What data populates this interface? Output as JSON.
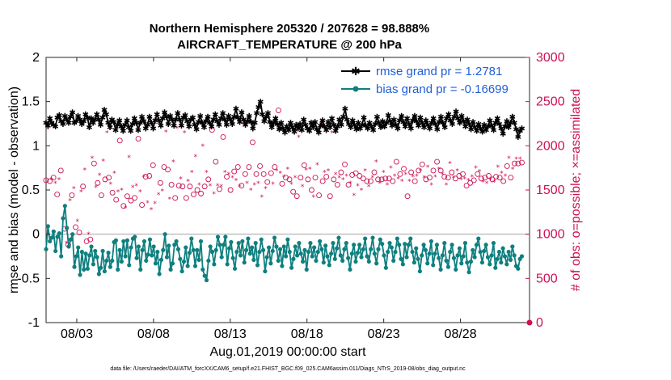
{
  "chart_data": {
    "type": "line",
    "title": "Northern Hemisphere 205320 / 207628 = 98.888%",
    "subtitle": "AIRCRAFT_TEMPERATURE @ 200 hPa",
    "xlabel": "Aug.01,2019 00:00:00 start",
    "ylabel_left": "rmse and bias (model - observation)",
    "ylabel_right": "# of obs: o=possible; ×=assimilated",
    "footnote": "data file: /Users/raeder/DAI/ATM_forcXX/CAM6_setup/f.e21.FHIST_BGC.f09_025.CAM6assim.011/Diags_NTrS_2019-08/obs_diag_output.nc",
    "xlim": [
      0,
      31.5
    ],
    "ylim_left": [
      -1,
      2
    ],
    "ylim_right": [
      0,
      3000
    ],
    "x_ticks": [
      {
        "value": 2,
        "label": "08/03"
      },
      {
        "value": 7,
        "label": "08/08"
      },
      {
        "value": 12,
        "label": "08/13"
      },
      {
        "value": 17,
        "label": "08/18"
      },
      {
        "value": 22,
        "label": "08/23"
      },
      {
        "value": 27,
        "label": "08/28"
      }
    ],
    "y_left_ticks": [
      "-1",
      "-0.5",
      "0",
      "0.5",
      "1",
      "1.5",
      "2"
    ],
    "y_right_ticks": [
      "0",
      "500",
      "1000",
      "1500",
      "2000",
      "2500",
      "3000"
    ],
    "colors": {
      "rmse": "#000000",
      "bias": "#0f7f7f",
      "obs": "#cc1155",
      "zero_line": "#c0c0c0",
      "legend_text": "#1f5fd8"
    },
    "legend": [
      {
        "name": "rmse grand pr = 1.2781",
        "series": "rmse"
      },
      {
        "name": "bias grand pr = -0.16699",
        "series": "bias"
      }
    ],
    "series": [
      {
        "name": "rmse",
        "axis": "left",
        "marker": "star",
        "values": [
          1.26,
          1.23,
          1.31,
          1.26,
          1.24,
          1.22,
          1.32,
          1.35,
          1.28,
          1.25,
          1.34,
          1.3,
          1.26,
          1.33,
          1.38,
          1.26,
          1.28,
          1.34,
          1.3,
          1.25,
          1.28,
          1.36,
          1.32,
          1.21,
          1.31,
          1.26,
          1.3,
          1.36,
          1.3,
          1.24,
          1.32,
          1.41,
          1.36,
          1.26,
          1.21,
          1.3,
          1.27,
          1.18,
          1.24,
          1.29,
          1.22,
          1.17,
          1.24,
          1.29,
          1.21,
          1.17,
          1.25,
          1.31,
          1.26,
          1.18,
          1.26,
          1.33,
          1.28,
          1.2,
          1.24,
          1.33,
          1.26,
          1.2,
          1.29,
          1.36,
          1.29,
          1.23,
          1.31,
          1.38,
          1.33,
          1.25,
          1.34,
          1.3,
          1.23,
          1.3,
          1.37,
          1.3,
          1.23,
          1.32,
          1.35,
          1.28,
          1.22,
          1.3,
          1.32,
          1.24,
          1.19,
          1.27,
          1.34,
          1.26,
          1.21,
          1.28,
          1.33,
          1.26,
          1.22,
          1.3,
          1.36,
          1.28,
          1.24,
          1.31,
          1.37,
          1.3,
          1.24,
          1.34,
          1.3,
          1.25,
          1.33,
          1.42,
          1.32,
          1.27,
          1.38,
          1.3,
          1.24,
          1.28,
          1.34,
          1.27,
          1.2,
          1.26,
          1.37,
          1.44,
          1.5,
          1.36,
          1.28,
          1.33,
          1.37,
          1.27,
          1.21,
          1.26,
          1.31,
          1.25,
          1.19,
          1.26,
          1.2,
          1.15,
          1.22,
          1.18,
          1.26,
          1.21,
          1.16,
          1.24,
          1.2,
          1.25,
          1.18,
          1.3,
          1.24,
          1.2,
          1.17,
          1.26,
          1.21,
          1.27,
          1.19,
          1.15,
          1.23,
          1.29,
          1.22,
          1.18,
          1.27,
          1.21,
          1.31,
          1.24,
          1.17,
          1.22,
          1.3,
          1.24,
          1.33,
          1.42,
          1.3,
          1.25,
          1.21,
          1.29,
          1.24,
          1.19,
          1.26,
          1.2,
          1.24,
          1.32,
          1.23,
          1.2,
          1.26,
          1.22,
          1.18,
          1.25,
          1.33,
          1.26,
          1.21,
          1.28,
          1.22,
          1.26,
          1.35,
          1.28,
          1.23,
          1.3,
          1.24,
          1.2,
          1.29,
          1.34,
          1.27,
          1.22,
          1.31,
          1.25,
          1.2,
          1.29,
          1.34,
          1.28,
          1.23,
          1.32,
          1.26,
          1.21,
          1.29,
          1.24,
          1.2,
          1.26,
          1.31,
          1.25,
          1.19,
          1.27,
          1.33,
          1.26,
          1.21,
          1.31,
          1.36,
          1.29,
          1.25,
          1.33,
          1.39,
          1.31,
          1.26,
          1.34,
          1.28,
          1.22,
          1.3,
          1.25,
          1.19,
          1.27,
          1.21,
          1.17,
          1.25,
          1.2,
          1.16,
          1.24,
          1.18,
          1.22,
          1.29,
          1.23,
          1.18,
          1.26,
          1.31,
          1.25,
          1.2,
          1.14,
          1.22,
          1.28,
          1.21,
          1.26,
          1.33,
          1.26,
          1.19,
          1.1,
          1.17,
          1.2
        ]
      },
      {
        "name": "bias",
        "axis": "left",
        "marker": "circle",
        "values": [
          -0.17,
          0.09,
          -0.08,
          -0.04,
          0.03,
          -0.19,
          -0.03,
          0.01,
          -0.25,
          0.18,
          0.32,
          0.07,
          -0.14,
          -0.06,
          0.0,
          -0.37,
          -0.25,
          -0.15,
          -0.46,
          -0.2,
          -0.4,
          -0.22,
          -0.39,
          -0.24,
          -0.14,
          -0.34,
          -0.19,
          -0.26,
          -0.45,
          -0.38,
          -0.19,
          -0.42,
          -0.3,
          -0.21,
          -0.37,
          -0.3,
          -0.09,
          -0.07,
          -0.4,
          -0.18,
          -0.31,
          -0.08,
          -0.25,
          -0.07,
          -0.35,
          -0.15,
          -0.05,
          -0.03,
          -0.27,
          -0.14,
          -0.4,
          -0.18,
          -0.08,
          -0.3,
          -0.23,
          -0.06,
          -0.24,
          -0.14,
          -0.33,
          -0.2,
          -0.45,
          -0.29,
          -0.18,
          0.0,
          -0.26,
          -0.13,
          -0.4,
          -0.33,
          -0.12,
          -0.08,
          -0.17,
          -0.28,
          -0.42,
          -0.31,
          -0.15,
          -0.36,
          -0.21,
          -0.05,
          -0.18,
          -0.36,
          -0.18,
          -0.29,
          -0.08,
          -0.4,
          -0.47,
          -0.52,
          -0.3,
          -0.14,
          -0.2,
          -0.34,
          -0.18,
          -0.03,
          -0.12,
          -0.26,
          -0.12,
          -0.03,
          -0.34,
          -0.16,
          -0.09,
          -0.27,
          -0.39,
          -0.2,
          -0.1,
          -0.24,
          -0.08,
          -0.32,
          -0.18,
          -0.05,
          -0.22,
          -0.15,
          -0.29,
          -0.1,
          -0.35,
          -0.2,
          -0.06,
          -0.18,
          -0.42,
          -0.26,
          -0.15,
          -0.33,
          -0.19,
          -0.04,
          -0.14,
          -0.3,
          -0.17,
          -0.36,
          -0.14,
          -0.25,
          -0.06,
          -0.2,
          -0.38,
          -0.28,
          -0.14,
          -0.24,
          -0.1,
          -0.22,
          -0.31,
          -0.18,
          -0.4,
          -0.2,
          -0.1,
          -0.25,
          -0.15,
          -0.3,
          -0.2,
          -0.08,
          -0.17,
          -0.32,
          -0.13,
          -0.25,
          -0.35,
          -0.22,
          -0.1,
          -0.28,
          -0.16,
          -0.04,
          -0.24,
          -0.3,
          -0.17,
          -0.1,
          -0.27,
          -0.4,
          -0.22,
          -0.12,
          -0.31,
          -0.21,
          -0.12,
          -0.26,
          -0.17,
          -0.05,
          -0.25,
          -0.31,
          -0.17,
          -0.04,
          -0.22,
          -0.33,
          -0.17,
          -0.06,
          -0.11,
          -0.24,
          -0.38,
          -0.2,
          -0.1,
          -0.15,
          -0.3,
          -0.2,
          -0.05,
          -0.12,
          -0.28,
          -0.34,
          -0.11,
          -0.26,
          -0.12,
          -0.05,
          -0.2,
          -0.32,
          -0.16,
          -0.28,
          -0.42,
          -0.24,
          -0.12,
          -0.18,
          -0.33,
          -0.22,
          -0.08,
          -0.35,
          -0.22,
          -0.12,
          -0.27,
          -0.4,
          -0.24,
          -0.1,
          -0.3,
          -0.37,
          -0.2,
          -0.12,
          -0.27,
          -0.4,
          -0.24,
          -0.16,
          -0.33,
          -0.25,
          -0.1,
          -0.32,
          -0.43,
          -0.31,
          -0.18,
          -0.26,
          -0.12,
          -0.05,
          -0.2,
          -0.32,
          -0.19,
          -0.12,
          -0.26,
          -0.34,
          -0.24,
          -0.1,
          -0.38,
          -0.28,
          -0.2,
          -0.32,
          -0.16,
          -0.25,
          -0.34,
          -0.2,
          -0.29,
          -0.14,
          -0.24,
          -0.36,
          -0.39,
          -0.28,
          -0.25
        ]
      },
      {
        "name": "obs",
        "axis": "right",
        "marker": "circle-star",
        "values": [
          1610,
          2190,
          1600,
          1620,
          1640,
          1580,
          1450,
          1620,
          1720,
          1170,
          1060,
          900,
          880,
          1380,
          1440,
          1520,
          1080,
          1150,
          1020,
          1480,
          1540,
          1730,
          920,
          1000,
          940,
          1860,
          1800,
          1530,
          1580,
          1670,
          1440,
          1830,
          1620,
          2150,
          1640,
          1570,
          1470,
          1690,
          1390,
          1480,
          2060,
          1500,
          1320,
          1300,
          1430,
          1870,
          1380,
          1530,
          1410,
          1550,
          2080,
          1480,
          1330,
          1650,
          1650,
          1360,
          1660,
          1280,
          1780,
          1350,
          2280,
          1450,
          1580,
          1490,
          1760,
          2160,
          1730,
          1400,
          1560,
          1820,
          1410,
          2200,
          1550,
          1630,
          1540,
          2150,
          1410,
          1600,
          1540,
          1700,
          1450,
          1880,
          1500,
          1560,
          1460,
          2000,
          1540,
          1700,
          1620,
          1550,
          2180,
          1460,
          1820,
          1550,
          1510,
          1540,
          2100,
          1700,
          1650,
          1680,
          1500,
          1640,
          1710,
          1610,
          1760,
          1540,
          1550,
          2250,
          1680,
          1580,
          1760,
          1500,
          2040,
          1560,
          1680,
          1580,
          1770,
          1420,
          1680,
          1520,
          1590,
          2320,
          1690,
          1570,
          1760,
          1720,
          2400,
          1690,
          1570,
          1650,
          1640,
          1740,
          1620,
          1570,
          1480,
          1640,
          1430,
          2100,
          1640,
          1540,
          1780,
          1730,
          1620,
          1740,
          1500,
          1420,
          1640,
          1790,
          1440,
          2250,
          1600,
          1700,
          1650,
          1720,
          1430,
          2150,
          1620,
          1680,
          1560,
          1640,
          1700,
          1620,
          1790,
          1660,
          1560,
          1580,
          1670,
          1440,
          1690,
          1550,
          1660,
          1500,
          1630,
          1720,
          1600,
          1540,
          1600,
          1640,
          1700,
          1820,
          1620,
          1580,
          1620,
          1700,
          1630,
          1560,
          1630,
          1750,
          1600,
          1660,
          1820,
          1630,
          1680,
          1600,
          1740,
          1680,
          1430,
          1600,
          1700,
          1650,
          1600,
          1660,
          1720,
          1720,
          1790,
          1640,
          1620,
          1760,
          1640,
          1560,
          1720,
          1650,
          1820,
          1740,
          1720,
          1680,
          1650,
          1560,
          1640,
          1800,
          1700,
          1640,
          1630,
          1720,
          1660,
          1620,
          1680,
          1630,
          1550,
          1610,
          1580,
          1650,
          1610,
          1750,
          1680,
          1710,
          1630,
          1590,
          1640,
          1580,
          1660,
          1620,
          1620,
          1590,
          1650,
          1760,
          1640,
          1690,
          1600,
          1660,
          1770,
          1860,
          1640,
          1740,
          1800,
          1850,
          1800,
          1850,
          1810
        ]
      }
    ]
  }
}
